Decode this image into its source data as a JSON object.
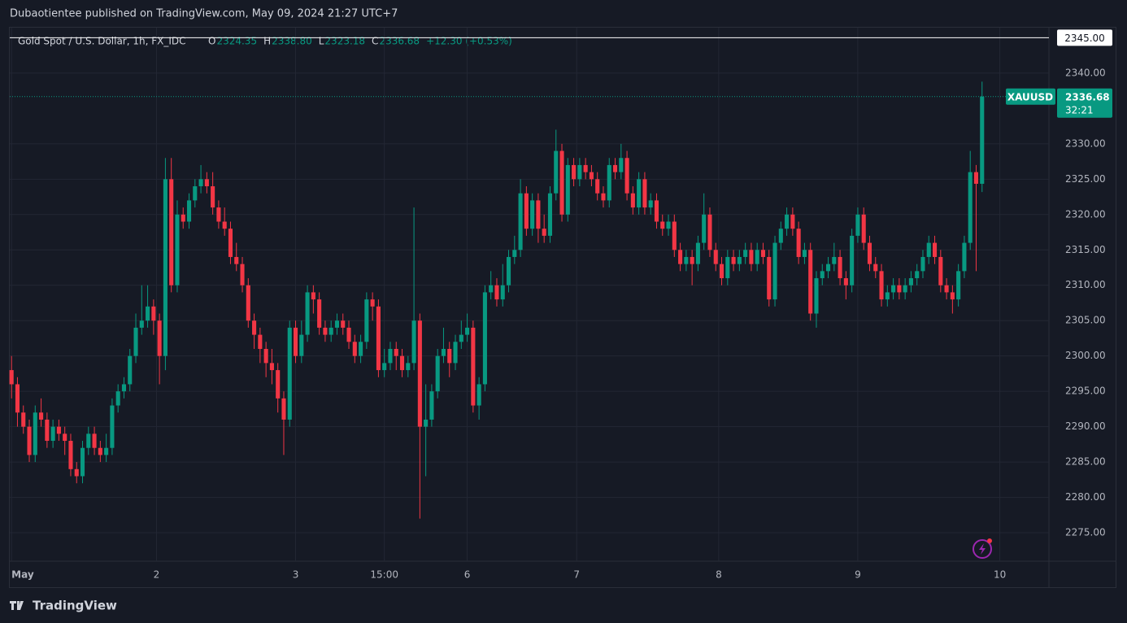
{
  "header": {
    "attribution": "Dubaotientee published on TradingView.com, May 09, 2024 21:27 UTC+7"
  },
  "footer": {
    "brand": "TradingView"
  },
  "chart_data": {
    "type": "candlestick",
    "title": "Gold Spot / U.S. Dollar, 1h, FX_IDC",
    "legend": {
      "o_label": "O",
      "open": "2324.35",
      "h_label": "H",
      "high": "2338.80",
      "l_label": "L",
      "low": "2323.18",
      "c_label": "C",
      "close": "2336.68",
      "change": "+12.30 (+0.53%)"
    },
    "up_color": "#089981",
    "down_color": "#f23645",
    "grid": true,
    "ylim": [
      2270.98,
      2346.43
    ],
    "yticks": [
      {
        "value": 2275,
        "label": "2275.00"
      },
      {
        "value": 2280,
        "label": "2280.00"
      },
      {
        "value": 2285,
        "label": "2285.00"
      },
      {
        "value": 2290,
        "label": "2290.00"
      },
      {
        "value": 2295,
        "label": "2295.00"
      },
      {
        "value": 2300,
        "label": "2300.00"
      },
      {
        "value": 2305,
        "label": "2305.00"
      },
      {
        "value": 2310,
        "label": "2310.00"
      },
      {
        "value": 2315,
        "label": "2315.00"
      },
      {
        "value": 2320,
        "label": "2320.00"
      },
      {
        "value": 2325,
        "label": "2325.00"
      },
      {
        "value": 2330,
        "label": "2330.00"
      },
      {
        "value": 2340,
        "label": "2340.00"
      }
    ],
    "xlim": [
      -0.3,
      175.3
    ],
    "xticks": [
      {
        "value": 0,
        "label": "May"
      },
      {
        "value": 24.5,
        "label": "2"
      },
      {
        "value": 48,
        "label": "3"
      },
      {
        "value": 63,
        "label": "15:00"
      },
      {
        "value": 77,
        "label": "6"
      },
      {
        "value": 95.5,
        "label": "7"
      },
      {
        "value": 119.5,
        "label": "8"
      },
      {
        "value": 143,
        "label": "9"
      },
      {
        "value": 167,
        "label": "10"
      }
    ],
    "price_line": {
      "value": 2345,
      "label": "2345.00"
    },
    "last_price": {
      "symbol": "XAUUSD",
      "label": "2336.68",
      "countdown": "32:21"
    },
    "open": [
      2298,
      2296,
      2292,
      2290,
      2286,
      2292,
      2291,
      2288,
      2290,
      2289,
      2288,
      2284,
      2283,
      2287,
      2289,
      2287,
      2286,
      2287,
      2293,
      2295,
      2296,
      2300,
      2304,
      2305,
      2307,
      2305,
      2300,
      2325,
      2310,
      2320,
      2319,
      2322,
      2324,
      2325,
      2324,
      2321,
      2319,
      2318,
      2314,
      2313,
      2310,
      2305,
      2303,
      2301,
      2299,
      2298,
      2294,
      2291,
      2304,
      2300,
      2303,
      2309,
      2308,
      2304,
      2303,
      2304,
      2305,
      2304,
      2302,
      2300,
      2302,
      2308,
      2307,
      2298,
      2299,
      2301,
      2300,
      2298,
      2299,
      2305,
      2290,
      2291,
      2295,
      2300,
      2301,
      2299,
      2302,
      2303,
      2304,
      2293,
      2296,
      2309,
      2310,
      2308,
      2310,
      2314,
      2315,
      2323,
      2318,
      2322,
      2318,
      2317,
      2323,
      2329,
      2320,
      2327,
      2325,
      2327,
      2326,
      2325,
      2323,
      2322,
      2327,
      2326,
      2328,
      2323,
      2321,
      2325,
      2321,
      2322,
      2319,
      2318,
      2319,
      2315,
      2313,
      2314,
      2313,
      2316,
      2320,
      2315,
      2313,
      2311,
      2314,
      2313,
      2314,
      2315,
      2313,
      2315,
      2314,
      2308,
      2316,
      2318,
      2320,
      2318,
      2314,
      2315,
      2306,
      2311,
      2312,
      2313,
      2314,
      2311,
      2310,
      2317,
      2320,
      2316,
      2313,
      2312,
      2308,
      2309,
      2310,
      2309,
      2310,
      2311,
      2312,
      2314,
      2316,
      2314,
      2310,
      2309,
      2308,
      2312,
      2316,
      2326,
      2324.35
    ],
    "high": [
      2300,
      2297,
      2293,
      2291,
      2293,
      2294,
      2292,
      2291,
      2291,
      2290,
      2289,
      2285,
      2288,
      2290,
      2290,
      2288,
      2289,
      2294,
      2296,
      2297,
      2301,
      2306,
      2310,
      2310,
      2308,
      2306,
      2328,
      2328,
      2322,
      2321,
      2323,
      2325,
      2327,
      2326,
      2326,
      2322,
      2321,
      2319,
      2316,
      2314,
      2311,
      2306,
      2304,
      2302,
      2301,
      2299,
      2295,
      2305,
      2305,
      2305,
      2310,
      2310,
      2309,
      2305,
      2305,
      2306,
      2306,
      2305,
      2303,
      2303,
      2309,
      2309,
      2308,
      2301,
      2302,
      2302,
      2301,
      2300,
      2321,
      2306,
      2296,
      2296,
      2301,
      2304,
      2302,
      2303,
      2305,
      2306,
      2305,
      2297,
      2310,
      2312,
      2311,
      2313,
      2315,
      2317,
      2325,
      2324,
      2323,
      2323,
      2320,
      2324,
      2332,
      2330,
      2328,
      2328,
      2328,
      2328,
      2327,
      2326,
      2324,
      2328,
      2328,
      2330,
      2329,
      2324,
      2326,
      2326,
      2323,
      2323,
      2320,
      2320,
      2320,
      2316,
      2315,
      2315,
      2317,
      2323,
      2321,
      2316,
      2314,
      2315,
      2315,
      2315,
      2316,
      2316,
      2316,
      2316,
      2315,
      2317,
      2319,
      2321,
      2321,
      2319,
      2316,
      2316,
      2312,
      2313,
      2314,
      2316,
      2315,
      2312,
      2318,
      2321,
      2321,
      2317,
      2314,
      2313,
      2310,
      2311,
      2311,
      2311,
      2312,
      2313,
      2315,
      2317,
      2317,
      2315,
      2311,
      2310,
      2313,
      2317,
      2329,
      2327,
      2338.8
    ],
    "low": [
      2294,
      2290,
      2289,
      2285,
      2285,
      2290,
      2287,
      2287,
      2288,
      2286,
      2283,
      2282,
      2282,
      2286,
      2286,
      2285,
      2285,
      2286,
      2292,
      2294,
      2295,
      2299,
      2303,
      2304,
      2303,
      2296,
      2298,
      2309,
      2309,
      2318,
      2318,
      2321,
      2323,
      2323,
      2320,
      2318,
      2317,
      2313,
      2312,
      2309,
      2304,
      2301,
      2299,
      2297,
      2296,
      2292,
      2286,
      2290,
      2299,
      2299,
      2302,
      2306,
      2303,
      2302,
      2302,
      2303,
      2303,
      2301,
      2299,
      2299,
      2301,
      2305,
      2297,
      2297,
      2298,
      2298,
      2297,
      2297,
      2298,
      2277,
      2283,
      2290,
      2294,
      2299,
      2297,
      2298,
      2301,
      2302,
      2292,
      2291,
      2295,
      2308,
      2307,
      2307,
      2309,
      2313,
      2314,
      2317,
      2317,
      2316,
      2316,
      2316,
      2322,
      2319,
      2319,
      2324,
      2324,
      2325,
      2324,
      2322,
      2321,
      2321,
      2325,
      2325,
      2322,
      2320,
      2320,
      2320,
      2320,
      2318,
      2317,
      2317,
      2314,
      2312,
      2312,
      2310,
      2312,
      2315,
      2314,
      2312,
      2310,
      2310,
      2312,
      2312,
      2313,
      2312,
      2312,
      2313,
      2307,
      2307,
      2315,
      2317,
      2317,
      2313,
      2313,
      2305,
      2304,
      2310,
      2311,
      2312,
      2310,
      2308,
      2309,
      2316,
      2315,
      2312,
      2311,
      2307,
      2307,
      2308,
      2308,
      2308,
      2309,
      2310,
      2311,
      2313,
      2313,
      2309,
      2308,
      2306,
      2307,
      2311,
      2315,
      2312,
      2323.18
    ],
    "close": [
      2296,
      2292,
      2290,
      2286,
      2292,
      2291,
      2288,
      2290,
      2289,
      2288,
      2284,
      2283,
      2287,
      2289,
      2287,
      2286,
      2287,
      2293,
      2295,
      2296,
      2300,
      2304,
      2305,
      2307,
      2305,
      2300,
      2325,
      2310,
      2320,
      2319,
      2322,
      2324,
      2325,
      2324,
      2321,
      2319,
      2318,
      2314,
      2313,
      2310,
      2305,
      2303,
      2301,
      2299,
      2298,
      2294,
      2291,
      2304,
      2300,
      2303,
      2309,
      2308,
      2304,
      2303,
      2304,
      2305,
      2304,
      2302,
      2300,
      2302,
      2308,
      2307,
      2298,
      2299,
      2301,
      2300,
      2298,
      2299,
      2305,
      2290,
      2291,
      2295,
      2300,
      2301,
      2299,
      2302,
      2303,
      2304,
      2293,
      2296,
      2309,
      2310,
      2308,
      2310,
      2314,
      2315,
      2323,
      2318,
      2322,
      2318,
      2317,
      2323,
      2329,
      2320,
      2327,
      2325,
      2327,
      2326,
      2325,
      2323,
      2322,
      2327,
      2326,
      2328,
      2323,
      2321,
      2325,
      2321,
      2322,
      2319,
      2318,
      2319,
      2315,
      2313,
      2314,
      2313,
      2316,
      2320,
      2315,
      2313,
      2311,
      2314,
      2313,
      2314,
      2315,
      2313,
      2315,
      2314,
      2308,
      2316,
      2318,
      2320,
      2318,
      2314,
      2315,
      2306,
      2311,
      2312,
      2313,
      2314,
      2311,
      2310,
      2317,
      2320,
      2316,
      2313,
      2312,
      2308,
      2309,
      2310,
      2309,
      2310,
      2311,
      2312,
      2314,
      2316,
      2314,
      2310,
      2309,
      2308,
      2312,
      2316,
      2326,
      2324.35,
      2336.68
    ]
  }
}
